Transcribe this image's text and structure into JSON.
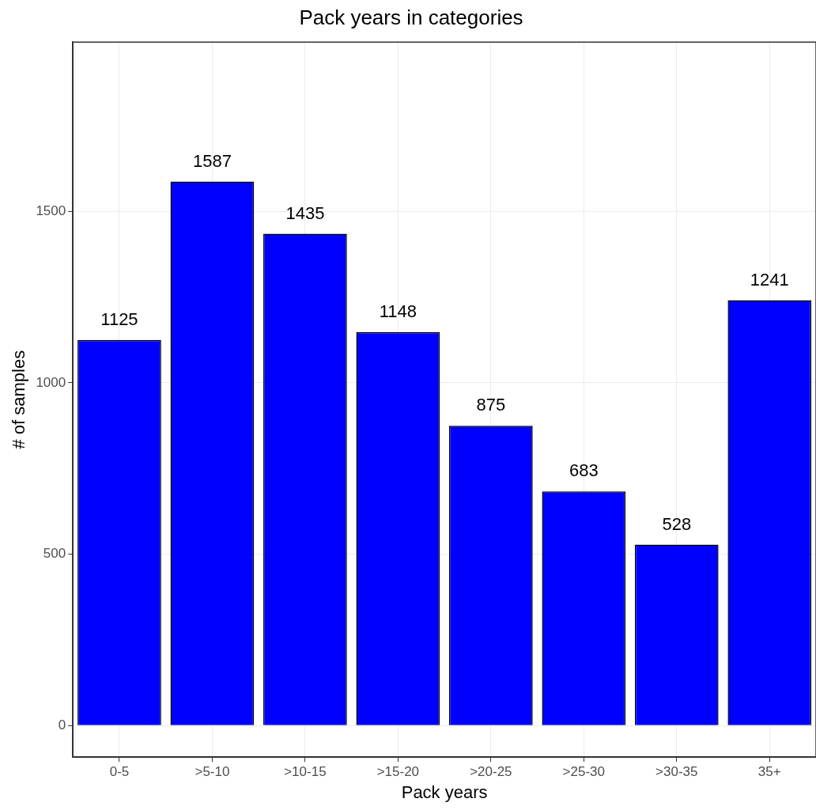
{
  "chart_data": {
    "type": "bar",
    "title": "Pack years in categories",
    "xlabel": "Pack years",
    "ylabel": "# of samples",
    "categories": [
      "0-5",
      ">5-10",
      ">10-15",
      ">15-20",
      ">20-25",
      ">25-30",
      ">30-35",
      "35+"
    ],
    "values": [
      1125,
      1587,
      1435,
      1148,
      875,
      683,
      528,
      1241
    ],
    "color": "#0000ff",
    "ylim": [
      -92,
      1994
    ],
    "yticks": [
      0,
      500,
      1000,
      1500
    ],
    "grid": true,
    "data_labels": true
  }
}
